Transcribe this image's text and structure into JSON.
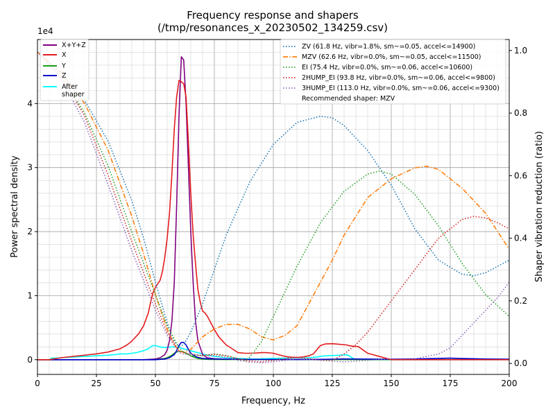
{
  "chart_data": {
    "type": "line",
    "title": "Frequency response and shapers",
    "subtitle": "(/tmp/resonances_x_20230502_134259.csv)",
    "xlabel": "Frequency, Hz",
    "ylabel": "Power spectral density",
    "y2label": "Shaper vibration reduction (ratio)",
    "xlim": [
      0,
      200
    ],
    "ylim": [
      -2300,
      50000
    ],
    "y2lim": [
      -0.035,
      1.035
    ],
    "y_exponent_label": "1e4",
    "x_ticks": [
      0,
      25,
      50,
      75,
      100,
      125,
      150,
      175,
      200
    ],
    "x_tick_labels": [
      "0",
      "25",
      "50",
      "75",
      "100",
      "125",
      "150",
      "175",
      "200"
    ],
    "y_ticks": [
      0,
      10000,
      20000,
      30000,
      40000
    ],
    "y_tick_labels": [
      "0",
      "1",
      "2",
      "3",
      "4"
    ],
    "y2_ticks": [
      0.0,
      0.2,
      0.4,
      0.6,
      0.8,
      1.0
    ],
    "y2_tick_labels": [
      "0.0",
      "0.2",
      "0.4",
      "0.6",
      "0.8",
      "1.0"
    ],
    "grid": true,
    "psd_legend": {
      "placement": "upper-left",
      "entries": [
        "X+Y+Z",
        "X",
        "Y",
        "Z",
        "After\nshaper"
      ]
    },
    "shaper_legend": {
      "placement": "upper-right",
      "entries": [
        "ZV (61.8 Hz, vibr=1.8%, sm~=0.05, accel<=14900)",
        "MZV (62.6 Hz, vibr=0.0%, sm~=0.05, accel<=11500)",
        "EI (75.4 Hz, vibr=0.0%, sm~=0.06, accel<=10600)",
        "2HUMP_EI (93.8 Hz, vibr=0.0%, sm~=0.06, accel<=9800)",
        "3HUMP_EI (113.0 Hz, vibr=0.0%, sm~=0.06, accel<=9300)"
      ],
      "footer": "Recommended shaper: MZV"
    },
    "psd_series": [
      {
        "name": "X+Y+Z",
        "color": "#800080",
        "dash": "solid",
        "width": 1.6,
        "x": [
          0,
          5,
          10,
          20,
          30,
          40,
          45,
          50,
          52,
          54,
          55,
          56,
          57,
          58,
          59,
          60,
          61,
          62,
          63,
          64,
          65,
          66,
          67,
          68,
          70,
          72,
          75,
          80,
          90,
          100,
          120,
          135,
          150,
          175,
          200
        ],
        "y": [
          0,
          0,
          0,
          0,
          0,
          0,
          0,
          100,
          300,
          800,
          1500,
          3000,
          6000,
          12000,
          24000,
          38000,
          47300,
          46800,
          40000,
          30000,
          20000,
          12000,
          6000,
          3000,
          800,
          300,
          150,
          80,
          40,
          20,
          20,
          10,
          10,
          10,
          10
        ]
      },
      {
        "name": "X",
        "color": "#e31a1c",
        "dash": "solid",
        "width": 1.6,
        "x": [
          0,
          5,
          10,
          15,
          20,
          25,
          30,
          33,
          35,
          38,
          40,
          43,
          45,
          47,
          48,
          49,
          50,
          52,
          53,
          54,
          55,
          56,
          57,
          58,
          59,
          60,
          61,
          62,
          63,
          64,
          65,
          66,
          67,
          68,
          69,
          70,
          71,
          72,
          73,
          75,
          77,
          80,
          83,
          85,
          88,
          90,
          93,
          95,
          97,
          100,
          102,
          105,
          107,
          110,
          112,
          115,
          117,
          119,
          120,
          122,
          125,
          128,
          131,
          132,
          133,
          134,
          136,
          140,
          150,
          200
        ],
        "y": [
          0,
          0,
          300,
          500,
          700,
          900,
          1200,
          1500,
          1700,
          2300,
          2900,
          4100,
          5300,
          7300,
          9000,
          10500,
          11300,
          12400,
          13800,
          16000,
          19000,
          23000,
          29000,
          36000,
          41000,
          43600,
          43400,
          43100,
          41000,
          34000,
          26000,
          19500,
          15000,
          11000,
          9000,
          7600,
          7300,
          6800,
          6100,
          4700,
          3500,
          2300,
          1600,
          1100,
          1000,
          1000,
          1050,
          1100,
          1100,
          1000,
          800,
          500,
          400,
          350,
          400,
          600,
          900,
          1800,
          2200,
          2450,
          2500,
          2400,
          2300,
          2200,
          2150,
          2100,
          2050,
          1000,
          0,
          0
        ]
      },
      {
        "name": "Y",
        "color": "#1a9e1a",
        "dash": "solid",
        "width": 1.6,
        "x": [
          0,
          40,
          50,
          52,
          54,
          55,
          56,
          57,
          58,
          59,
          60,
          61,
          62,
          63,
          64,
          65,
          66,
          67,
          68,
          70,
          72,
          75,
          80,
          90,
          100,
          125,
          150,
          175,
          200
        ],
        "y": [
          0,
          0,
          0,
          100,
          200,
          300,
          500,
          700,
          1000,
          1200,
          1300,
          1300,
          1200,
          1000,
          800,
          600,
          450,
          300,
          200,
          100,
          50,
          30,
          20,
          20,
          10,
          10,
          10,
          10,
          10
        ]
      },
      {
        "name": "Z",
        "color": "#0000cd",
        "dash": "solid",
        "width": 1.6,
        "x": [
          0,
          20,
          40,
          50,
          54,
          56,
          58,
          59,
          60,
          61,
          62,
          63,
          64,
          65,
          66,
          67,
          68,
          70,
          72,
          75,
          80,
          85,
          90,
          95,
          100,
          110,
          120,
          125,
          130,
          135,
          150,
          160,
          170,
          175,
          180,
          190,
          200
        ],
        "y": [
          0,
          0,
          0,
          0,
          100,
          300,
          800,
          1400,
          2200,
          2700,
          2700,
          2300,
          1600,
          1000,
          700,
          500,
          350,
          200,
          150,
          100,
          80,
          60,
          40,
          30,
          30,
          20,
          50,
          80,
          120,
          100,
          60,
          100,
          200,
          250,
          180,
          100,
          80
        ]
      },
      {
        "name": "After\nshaper",
        "color": "#00ffff",
        "dash": "solid",
        "width": 1.6,
        "x": [
          0,
          5,
          6,
          10,
          15,
          20,
          25,
          30,
          33,
          35,
          38,
          40,
          42,
          45,
          47,
          48,
          49,
          50,
          51,
          52,
          53,
          55,
          57,
          58,
          59,
          60,
          61,
          62,
          63,
          64,
          65,
          66,
          67,
          68,
          69,
          70,
          72,
          75,
          80,
          85,
          90,
          93,
          95,
          100,
          105,
          110,
          113,
          115,
          118,
          120,
          122,
          125,
          128,
          130,
          131,
          132,
          133,
          134,
          136,
          140,
          150,
          200
        ],
        "y": [
          0,
          0,
          250,
          300,
          400,
          500,
          600,
          700,
          800,
          900,
          900,
          1000,
          1100,
          1400,
          1700,
          2000,
          2200,
          2200,
          2100,
          2000,
          1900,
          1900,
          2000,
          2000,
          1900,
          1900,
          1800,
          1700,
          1600,
          1500,
          1400,
          1300,
          1200,
          1100,
          1000,
          900,
          700,
          500,
          300,
          200,
          100,
          100,
          150,
          200,
          250,
          300,
          300,
          300,
          400,
          500,
          600,
          650,
          700,
          750,
          750,
          650,
          400,
          150,
          50,
          0,
          0,
          0
        ]
      }
    ],
    "shaper_series": [
      {
        "name": "ZV",
        "color": "#1f77b4",
        "dash": "1.5,2.5",
        "width": 1.6,
        "x": [
          0,
          10,
          20,
          30,
          40,
          45,
          50,
          55,
          58,
          60,
          62,
          65,
          70,
          75,
          80,
          90,
          100,
          110,
          120,
          125,
          130,
          140,
          150,
          160,
          170,
          180,
          185,
          190,
          200
        ],
        "y": [
          0.995,
          0.93,
          0.84,
          0.71,
          0.52,
          0.4,
          0.26,
          0.13,
          0.07,
          0.055,
          0.06,
          0.1,
          0.19,
          0.3,
          0.41,
          0.58,
          0.7,
          0.77,
          0.79,
          0.785,
          0.76,
          0.68,
          0.57,
          0.43,
          0.33,
          0.285,
          0.28,
          0.29,
          0.33
        ]
      },
      {
        "name": "MZV",
        "color": "#ff7f0e",
        "dash": "7,2.5,1.5,2.5",
        "width": 1.6,
        "x": [
          0,
          10,
          20,
          30,
          40,
          45,
          50,
          55,
          58,
          60,
          62,
          65,
          70,
          75,
          80,
          85,
          90,
          95,
          100,
          105,
          110,
          115,
          120,
          125,
          130,
          140,
          150,
          160,
          165,
          170,
          180,
          190,
          200
        ],
        "y": [
          0.995,
          0.93,
          0.83,
          0.68,
          0.47,
          0.35,
          0.22,
          0.11,
          0.06,
          0.04,
          0.035,
          0.045,
          0.085,
          0.11,
          0.125,
          0.125,
          0.11,
          0.085,
          0.075,
          0.09,
          0.12,
          0.19,
          0.26,
          0.33,
          0.41,
          0.53,
          0.59,
          0.625,
          0.63,
          0.62,
          0.56,
          0.48,
          0.365
        ]
      },
      {
        "name": "EI",
        "color": "#2ca02c",
        "dash": "1.5,2.5",
        "width": 1.6,
        "x": [
          0,
          10,
          20,
          30,
          40,
          50,
          55,
          60,
          62,
          65,
          70,
          75,
          80,
          85,
          88,
          90,
          95,
          100,
          110,
          120,
          130,
          140,
          145,
          150,
          160,
          170,
          180,
          190,
          200
        ],
        "y": [
          0.995,
          0.92,
          0.8,
          0.63,
          0.42,
          0.22,
          0.12,
          0.05,
          0.035,
          0.025,
          0.025,
          0.03,
          0.025,
          0.015,
          0.01,
          0.02,
          0.07,
          0.15,
          0.31,
          0.45,
          0.55,
          0.605,
          0.615,
          0.605,
          0.54,
          0.44,
          0.32,
          0.22,
          0.15
        ]
      },
      {
        "name": "2HUMP_EI",
        "color": "#d62728",
        "dash": "1.5,2.5",
        "width": 1.6,
        "x": [
          0,
          10,
          20,
          30,
          40,
          50,
          55,
          60,
          62,
          65,
          70,
          75,
          80,
          85,
          90,
          95,
          100,
          105,
          110,
          115,
          120,
          125,
          130,
          135,
          140,
          145,
          150,
          160,
          170,
          180,
          185,
          190,
          195,
          200
        ],
        "y": [
          0.995,
          0.92,
          0.79,
          0.6,
          0.39,
          0.19,
          0.1,
          0.04,
          0.035,
          0.03,
          0.025,
          0.03,
          0.025,
          0.015,
          0.008,
          0.005,
          0.01,
          0.015,
          0.02,
          0.015,
          0.01,
          0.01,
          0.03,
          0.06,
          0.1,
          0.15,
          0.2,
          0.3,
          0.4,
          0.46,
          0.47,
          0.465,
          0.45,
          0.43
        ]
      },
      {
        "name": "3HUMP_EI",
        "color": "#9467bd",
        "dash": "1.5,2.5",
        "width": 1.6,
        "x": [
          0,
          10,
          20,
          30,
          40,
          50,
          55,
          60,
          62,
          65,
          70,
          75,
          80,
          85,
          90,
          95,
          100,
          110,
          120,
          130,
          140,
          150,
          160,
          170,
          175,
          180,
          185,
          190,
          195,
          200
        ],
        "y": [
          0.995,
          0.91,
          0.77,
          0.57,
          0.36,
          0.17,
          0.09,
          0.035,
          0.03,
          0.03,
          0.025,
          0.025,
          0.02,
          0.01,
          0.004,
          0.002,
          0.005,
          0.015,
          0.01,
          0.005,
          0.01,
          0.015,
          0.015,
          0.03,
          0.05,
          0.09,
          0.13,
          0.17,
          0.21,
          0.26
        ]
      }
    ]
  }
}
